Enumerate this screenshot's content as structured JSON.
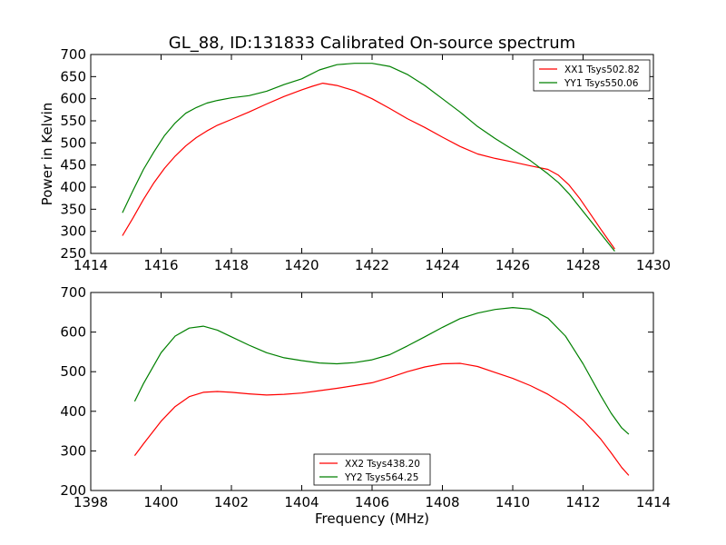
{
  "chart_data": [
    {
      "type": "line",
      "title": "GL_88, ID:131833 Calibrated On-source spectrum",
      "xlabel": "",
      "ylabel": "Power in Kelvin",
      "xlim": [
        1414,
        1430
      ],
      "ylim": [
        250,
        700
      ],
      "xticks": [
        1414,
        1416,
        1418,
        1420,
        1422,
        1424,
        1426,
        1428,
        1430
      ],
      "yticks": [
        250,
        300,
        350,
        400,
        450,
        500,
        550,
        600,
        650,
        700
      ],
      "grid": false,
      "legend_position": "top-right",
      "series": [
        {
          "name": "XX1 Tsys502.82",
          "color": "#ff0000",
          "x": [
            1414.9,
            1415.2,
            1415.5,
            1415.8,
            1416.1,
            1416.4,
            1416.7,
            1417.0,
            1417.3,
            1417.6,
            1418.0,
            1418.5,
            1419.0,
            1419.5,
            1420.0,
            1420.3,
            1420.6,
            1421.0,
            1421.5,
            1422.0,
            1422.5,
            1423.0,
            1423.5,
            1424.0,
            1424.5,
            1425.0,
            1425.5,
            1426.0,
            1426.5,
            1427.0,
            1427.3,
            1427.6,
            1427.9,
            1428.2,
            1428.5,
            1428.9
          ],
          "y": [
            290,
            330,
            372,
            410,
            443,
            470,
            493,
            512,
            527,
            540,
            553,
            570,
            588,
            605,
            620,
            628,
            635,
            630,
            618,
            600,
            578,
            555,
            535,
            513,
            492,
            475,
            465,
            457,
            448,
            440,
            427,
            405,
            375,
            340,
            305,
            260
          ]
        },
        {
          "name": "YY1 Tsys550.06",
          "color": "#008000",
          "x": [
            1414.9,
            1415.2,
            1415.5,
            1415.8,
            1416.1,
            1416.4,
            1416.7,
            1417.0,
            1417.3,
            1417.6,
            1418.0,
            1418.5,
            1419.0,
            1419.5,
            1420.0,
            1420.5,
            1421.0,
            1421.5,
            1422.0,
            1422.5,
            1423.0,
            1423.5,
            1424.0,
            1424.5,
            1425.0,
            1425.5,
            1426.0,
            1426.5,
            1427.0,
            1427.3,
            1427.6,
            1427.9,
            1428.2,
            1428.5,
            1428.9
          ],
          "y": [
            342,
            392,
            440,
            480,
            517,
            545,
            567,
            580,
            590,
            596,
            602,
            607,
            617,
            632,
            645,
            665,
            677,
            680,
            680,
            673,
            655,
            630,
            600,
            570,
            537,
            510,
            485,
            460,
            430,
            410,
            385,
            355,
            325,
            295,
            255
          ]
        }
      ]
    },
    {
      "type": "line",
      "title": "",
      "xlabel": "Frequency (MHz)",
      "ylabel": "",
      "xlim": [
        1398,
        1414
      ],
      "ylim": [
        200,
        700
      ],
      "xticks": [
        1398,
        1400,
        1402,
        1404,
        1406,
        1408,
        1410,
        1412,
        1414
      ],
      "yticks": [
        200,
        300,
        400,
        500,
        600,
        700
      ],
      "grid": false,
      "legend_position": "bottom-center",
      "series": [
        {
          "name": "XX2 Tsys438.20",
          "color": "#ff0000",
          "x": [
            1399.25,
            1399.5,
            1400.0,
            1400.4,
            1400.8,
            1401.2,
            1401.6,
            1402.0,
            1402.5,
            1403.0,
            1403.5,
            1404.0,
            1404.5,
            1405.0,
            1405.5,
            1406.0,
            1406.5,
            1407.0,
            1407.5,
            1408.0,
            1408.5,
            1409.0,
            1409.5,
            1410.0,
            1410.5,
            1411.0,
            1411.5,
            1412.0,
            1412.5,
            1412.8,
            1413.1,
            1413.3
          ],
          "y": [
            288,
            318,
            375,
            412,
            437,
            448,
            450,
            448,
            444,
            441,
            443,
            446,
            452,
            458,
            465,
            472,
            485,
            500,
            512,
            520,
            521,
            513,
            498,
            483,
            465,
            443,
            415,
            378,
            330,
            295,
            258,
            238
          ]
        },
        {
          "name": "YY2 Tsys564.25",
          "color": "#008000",
          "x": [
            1399.25,
            1399.5,
            1400.0,
            1400.4,
            1400.8,
            1401.2,
            1401.6,
            1402.0,
            1402.5,
            1403.0,
            1403.5,
            1404.0,
            1404.5,
            1405.0,
            1405.5,
            1406.0,
            1406.5,
            1407.0,
            1407.5,
            1408.0,
            1408.5,
            1409.0,
            1409.5,
            1410.0,
            1410.5,
            1411.0,
            1411.5,
            1412.0,
            1412.5,
            1412.8,
            1413.1,
            1413.3
          ],
          "y": [
            425,
            470,
            548,
            590,
            610,
            615,
            605,
            588,
            567,
            548,
            535,
            528,
            522,
            520,
            523,
            530,
            543,
            565,
            588,
            612,
            634,
            648,
            657,
            662,
            658,
            635,
            590,
            520,
            440,
            395,
            358,
            342
          ]
        }
      ]
    }
  ]
}
